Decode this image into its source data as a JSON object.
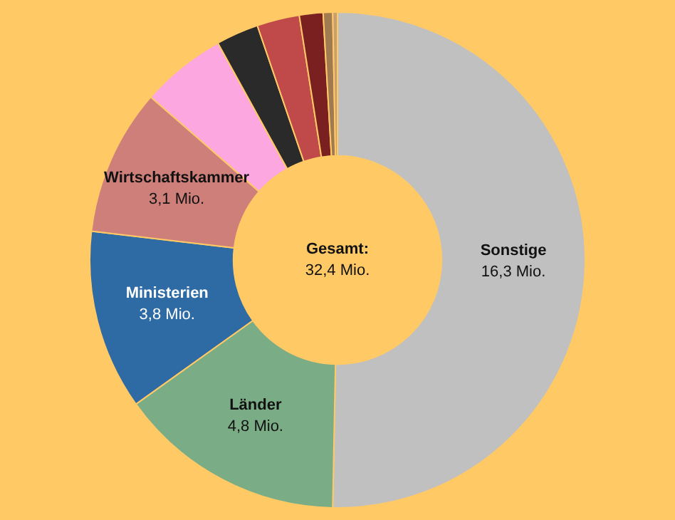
{
  "chart_data": {
    "type": "donut",
    "categories": [
      "Sonstige",
      "Länder",
      "Ministerien",
      "Wirtschaftskammer",
      null,
      null,
      null,
      null,
      null,
      null
    ],
    "values": [
      16.3,
      4.8,
      3.8,
      3.1,
      1.8,
      0.9,
      0.9,
      0.5,
      0.2,
      0.1
    ],
    "value_labels": [
      "16,3 Mio.",
      "4,8 Mio.",
      "3,8 Mio.",
      "3,1 Mio.",
      null,
      null,
      null,
      null,
      null,
      null
    ],
    "colors": [
      "#c0c0c0",
      "#7aad86",
      "#2e6aa3",
      "#cf7f7a",
      "#fca7e0",
      "#2a2a2a",
      "#c04a4a",
      "#7a2020",
      "#a07a50",
      "#c8a070"
    ],
    "annotations": [
      "Gesamt:",
      "32,4 Mio."
    ],
    "legend": false
  }
}
